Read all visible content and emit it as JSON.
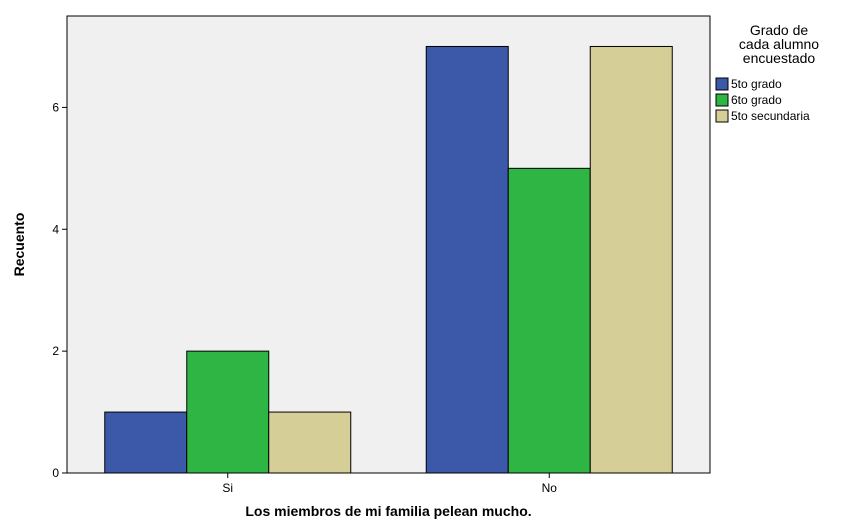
{
  "chart_data": {
    "type": "bar",
    "categories": [
      "Si",
      "No"
    ],
    "series": [
      {
        "name": "5to grado",
        "values": [
          1,
          7
        ],
        "color": "#3c58a8"
      },
      {
        "name": "6to grado",
        "values": [
          2,
          5
        ],
        "color": "#2fb543"
      },
      {
        "name": "5to secundaria",
        "values": [
          1,
          7
        ],
        "color": "#d5cf97"
      }
    ],
    "title": "",
    "xlabel": "Los miembros de mi familia pelean mucho.",
    "ylabel": "Recuento",
    "ylim": [
      0,
      7.5
    ],
    "yticks": [
      "0",
      "2",
      "4",
      "6"
    ],
    "legend": {
      "title_lines": [
        "Grado de",
        "cada alumno",
        "encuestado"
      ],
      "placement": "top-right"
    },
    "grid": false,
    "plot_background": "#f0f0f0"
  }
}
